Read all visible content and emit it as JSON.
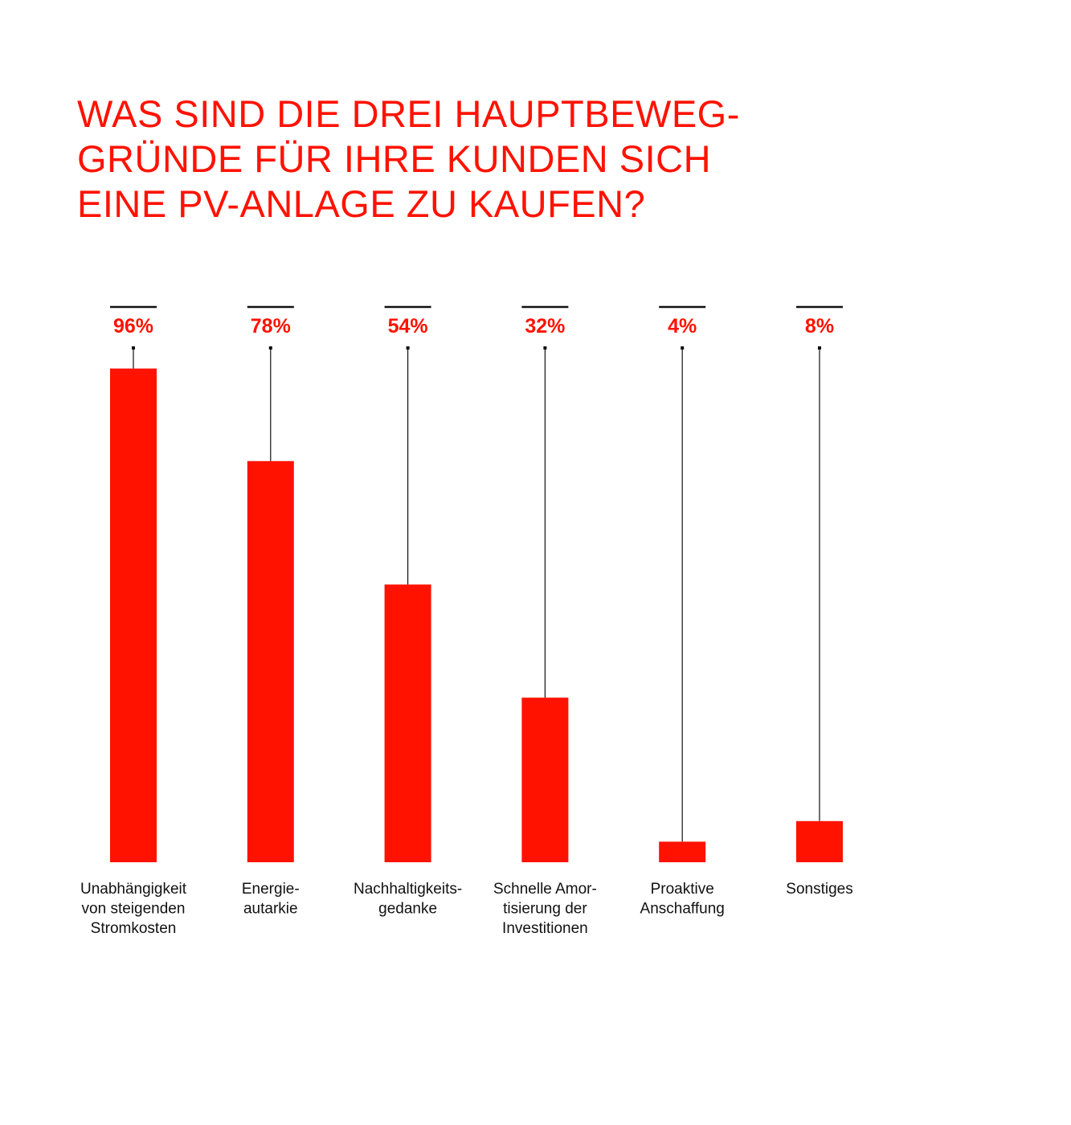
{
  "colors": {
    "bar": "#ff1200",
    "value_text": "#ff1200",
    "line": "#111111",
    "label_text": "#111111",
    "background": "#ffffff"
  },
  "chart_data": {
    "type": "bar",
    "title": "WAS SIND DIE DREI HAUPTBEWEG-GRÜNDE FÜR IHRE KUNDEN SICH EINE PV-ANLAGE ZU KAUFEN?",
    "title_lines": [
      "WAS SIND DIE DREI HAUPTBEWEG-",
      "GRÜNDE FÜR IHRE KUNDEN SICH",
      "EINE PV-ANLAGE ZU KAUFEN?"
    ],
    "unit": "%",
    "ylim": [
      0,
      100
    ],
    "grid": false,
    "categories": [
      "Unabhängigkeit von steigenden Stromkosten",
      "Energie-autarkie",
      "Nachhaltigkeits-gedanke",
      "Schnelle Amor-tisierung der Investitionen",
      "Proaktive Anschaffung",
      "Sonstiges"
    ],
    "category_lines": [
      [
        "Unabhängigkeit",
        "von steigenden",
        "Stromkosten"
      ],
      [
        "Energie-",
        "autarkie"
      ],
      [
        "Nachhaltigkeits-",
        "gedanke"
      ],
      [
        "Schnelle Amor-",
        "tisierung der",
        "Investitionen"
      ],
      [
        "Proaktive",
        "Anschaffung"
      ],
      [
        "Sonstiges"
      ]
    ],
    "values": [
      96,
      78,
      54,
      32,
      4,
      8
    ],
    "value_labels": [
      "96%",
      "78%",
      "54%",
      "32%",
      "4%",
      "8%"
    ]
  }
}
